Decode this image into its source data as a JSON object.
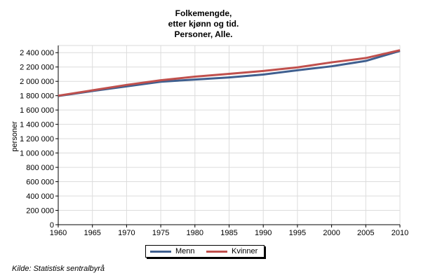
{
  "chart_data": {
    "type": "line",
    "title_lines": [
      "Folkemengde,",
      "etter kjønn og tid.",
      "Personer, Alle."
    ],
    "xlabel": "",
    "ylabel": "personer",
    "x": [
      1960,
      1965,
      1970,
      1975,
      1980,
      1985,
      1990,
      1995,
      2000,
      2005,
      2010
    ],
    "x_ticks": [
      "1960",
      "1965",
      "1970",
      "1975",
      "1980",
      "1985",
      "1990",
      "1995",
      "2000",
      "2005",
      "2010"
    ],
    "y_ticks": [
      "0",
      "200 000",
      "400 000",
      "600 000",
      "800 000",
      "1 000 000",
      "1 200 000",
      "1 400 000",
      "1 600 000",
      "1 800 000",
      "2 000 000",
      "2 200 000",
      "2 400 000"
    ],
    "xlim": [
      1960,
      2010
    ],
    "ylim": [
      0,
      2500000
    ],
    "grid": true,
    "legend_position": "bottom-center",
    "series": [
      {
        "name": "Menn",
        "color": "#3f5f8f",
        "values": [
          1795000,
          1865000,
          1930000,
          1995000,
          2025000,
          2055000,
          2095000,
          2155000,
          2210000,
          2285000,
          2425000
        ]
      },
      {
        "name": "Kvinner",
        "color": "#c0504d",
        "values": [
          1800000,
          1875000,
          1950000,
          2015000,
          2065000,
          2105000,
          2145000,
          2195000,
          2265000,
          2325000,
          2435000
        ]
      }
    ]
  },
  "source_note": "Kilde: Statistisk sentralbyrå"
}
